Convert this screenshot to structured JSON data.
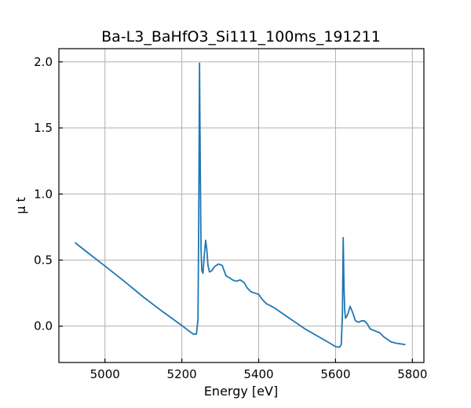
{
  "chart_data": {
    "type": "line",
    "title": "Ba-L3_BaHfO3_Si111_100ms_191211",
    "xlabel": "Energy [eV]",
    "ylabel": "μ t",
    "xlim": [
      4880,
      5830
    ],
    "ylim": [
      -0.275,
      2.1
    ],
    "xticks": [
      5000,
      5200,
      5400,
      5600,
      5800
    ],
    "xtick_labels": [
      "5000",
      "5200",
      "5400",
      "5600",
      "5800"
    ],
    "yticks": [
      0.0,
      0.5,
      1.0,
      1.5,
      2.0
    ],
    "ytick_labels": [
      "0.0",
      "0.5",
      "1.0",
      "1.5",
      "2.0"
    ],
    "grid": true,
    "line_color": "#1f77b4",
    "series": [
      {
        "name": "",
        "x": [
          4922,
          4960,
          5000,
          5050,
          5100,
          5150,
          5200,
          5220,
          5230,
          5238,
          5242,
          5244,
          5246,
          5248,
          5250,
          5252,
          5255,
          5258,
          5262,
          5265,
          5268,
          5272,
          5278,
          5285,
          5295,
          5305,
          5315,
          5322,
          5332,
          5342,
          5352,
          5362,
          5370,
          5380,
          5390,
          5400,
          5410,
          5420,
          5440,
          5460,
          5480,
          5500,
          5520,
          5550,
          5580,
          5600,
          5610,
          5615,
          5618,
          5620,
          5622,
          5624,
          5626,
          5628,
          5632,
          5638,
          5645,
          5652,
          5660,
          5668,
          5675,
          5682,
          5690,
          5698,
          5706,
          5715,
          5725,
          5735,
          5745,
          5760,
          5782
        ],
        "y": [
          0.632,
          0.545,
          0.455,
          0.34,
          0.22,
          0.11,
          0.005,
          -0.04,
          -0.06,
          -0.06,
          0.05,
          0.8,
          1.99,
          1.2,
          0.58,
          0.42,
          0.4,
          0.52,
          0.65,
          0.58,
          0.46,
          0.41,
          0.42,
          0.45,
          0.47,
          0.46,
          0.38,
          0.37,
          0.35,
          0.34,
          0.35,
          0.33,
          0.29,
          0.26,
          0.25,
          0.24,
          0.2,
          0.17,
          0.14,
          0.1,
          0.06,
          0.02,
          -0.02,
          -0.07,
          -0.12,
          -0.155,
          -0.16,
          -0.14,
          0.1,
          0.67,
          0.3,
          0.12,
          0.06,
          0.07,
          0.09,
          0.15,
          0.1,
          0.04,
          0.03,
          0.04,
          0.04,
          0.02,
          -0.02,
          -0.03,
          -0.04,
          -0.05,
          -0.08,
          -0.1,
          -0.12,
          -0.13,
          -0.14
        ]
      }
    ]
  }
}
